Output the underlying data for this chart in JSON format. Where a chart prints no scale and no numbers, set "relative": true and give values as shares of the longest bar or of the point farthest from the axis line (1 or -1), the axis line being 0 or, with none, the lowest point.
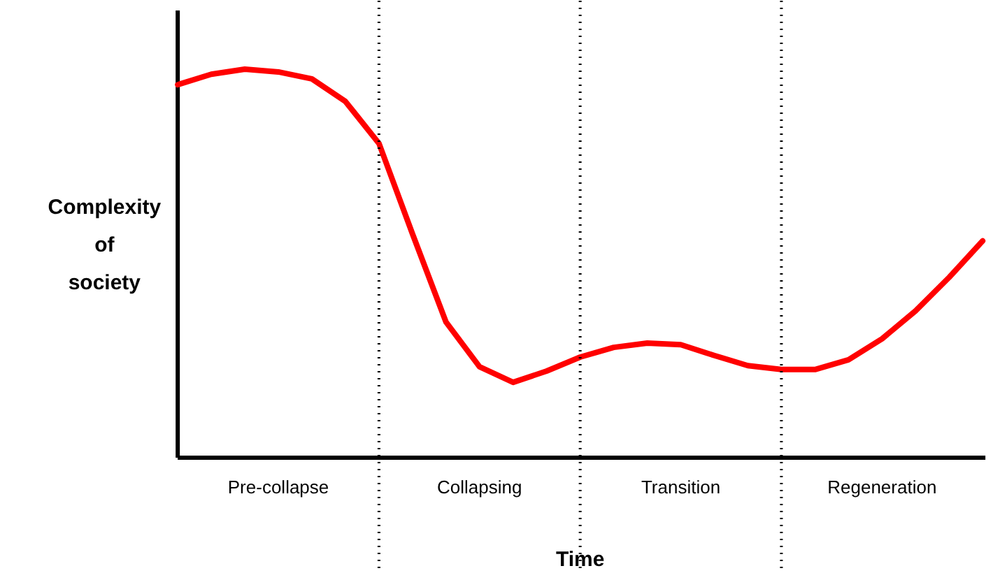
{
  "chart_data": {
    "type": "line",
    "relative": true,
    "xlabel": "Time",
    "ylabel": "Complexity of society",
    "line_style": "solid",
    "grid": "x",
    "categories": [
      null,
      null,
      null,
      null,
      null,
      null,
      null,
      null,
      null,
      null,
      null,
      null,
      null,
      null,
      null,
      null,
      null,
      null,
      null,
      null,
      null,
      null,
      null,
      null,
      null
    ],
    "series": [
      {
        "color": "#ff0000",
        "values": [
          0.96,
          0.987,
          1.0,
          0.993,
          0.975,
          0.917,
          0.809,
          0.576,
          0.349,
          0.234,
          0.194,
          0.223,
          0.259,
          0.284,
          0.295,
          0.291,
          0.263,
          0.237,
          0.227,
          0.227,
          0.252,
          0.306,
          0.378,
          0.464,
          0.558
        ]
      }
    ],
    "annotations": [
      "Pre-collapse",
      "Collapsing",
      "Transition",
      "Regeneration"
    ]
  }
}
